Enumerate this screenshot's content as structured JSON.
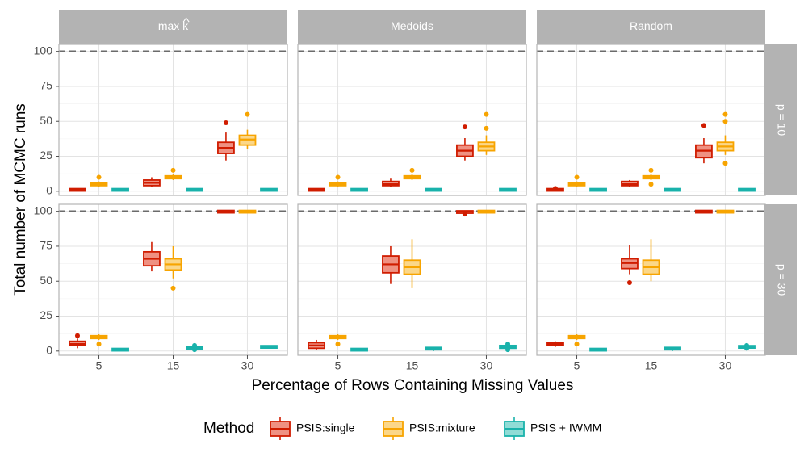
{
  "chart_data": {
    "type": "boxplot",
    "x_label": "Percentage of Rows Containing Missing Values",
    "y_label": "Total number of MCMC runs",
    "x_categories": [
      "5",
      "15",
      "30"
    ],
    "y_ticks": [
      0,
      25,
      50,
      75,
      100
    ],
    "ylim": [
      -3,
      105
    ],
    "reference_line": 100,
    "column_facets": [
      "max k",
      "Medoids",
      "Random"
    ],
    "column_facet_hat_on_last_char": [
      true,
      false,
      false
    ],
    "row_facets": [
      "p = 10",
      "p = 30"
    ],
    "legend": {
      "title": "Method",
      "position": "bottom",
      "entries": [
        "PSIS:single",
        "PSIS:mixture",
        "PSIS + IWMM"
      ]
    },
    "series_colors": {
      "PSIS:single": "#d01c00",
      "PSIS:mixture": "#f7a400",
      "PSIS + IWMM": "#19b2ab"
    },
    "series_fills": {
      "PSIS:single": "#ef9182",
      "PSIS:mixture": "#fbd789",
      "PSIS + IWMM": "#90dcd6"
    },
    "panels": [
      {
        "row": "p = 10",
        "col": "max k",
        "boxes": [
          {
            "series": "PSIS:single",
            "x": "5",
            "q1": 0.5,
            "median": 1,
            "q3": 1.5,
            "lo": 0,
            "hi": 2,
            "outliers": []
          },
          {
            "series": "PSIS:mixture",
            "x": "5",
            "q1": 4,
            "median": 5,
            "q3": 6,
            "lo": 3,
            "hi": 7,
            "outliers": [
              10
            ]
          },
          {
            "series": "PSIS + IWMM",
            "x": "5",
            "q1": 0.5,
            "median": 1,
            "q3": 1.5,
            "lo": 0,
            "hi": 2,
            "outliers": []
          },
          {
            "series": "PSIS:single",
            "x": "15",
            "q1": 4,
            "median": 6,
            "q3": 8,
            "lo": 3,
            "hi": 10,
            "outliers": []
          },
          {
            "series": "PSIS:mixture",
            "x": "15",
            "q1": 9,
            "median": 10,
            "q3": 11,
            "lo": 8,
            "hi": 12,
            "outliers": [
              15
            ]
          },
          {
            "series": "PSIS + IWMM",
            "x": "15",
            "q1": 0.5,
            "median": 1,
            "q3": 1.5,
            "lo": 0,
            "hi": 2,
            "outliers": []
          },
          {
            "series": "PSIS:single",
            "x": "30",
            "q1": 27,
            "median": 31,
            "q3": 35,
            "lo": 22,
            "hi": 42,
            "outliers": [
              49
            ]
          },
          {
            "series": "PSIS:mixture",
            "x": "30",
            "q1": 33,
            "median": 37,
            "q3": 40,
            "lo": 30,
            "hi": 44,
            "outliers": [
              55
            ]
          },
          {
            "series": "PSIS + IWMM",
            "x": "30",
            "q1": 0.5,
            "median": 1,
            "q3": 1.5,
            "lo": 0,
            "hi": 2,
            "outliers": []
          }
        ]
      },
      {
        "row": "p = 10",
        "col": "Medoids",
        "boxes": [
          {
            "series": "PSIS:single",
            "x": "5",
            "q1": 0.5,
            "median": 1,
            "q3": 1.5,
            "lo": 0,
            "hi": 2,
            "outliers": []
          },
          {
            "series": "PSIS:mixture",
            "x": "5",
            "q1": 4,
            "median": 5,
            "q3": 6,
            "lo": 3,
            "hi": 7,
            "outliers": [
              10
            ]
          },
          {
            "series": "PSIS + IWMM",
            "x": "5",
            "q1": 0.5,
            "median": 1,
            "q3": 1.5,
            "lo": 0,
            "hi": 2,
            "outliers": []
          },
          {
            "series": "PSIS:single",
            "x": "15",
            "q1": 4,
            "median": 5,
            "q3": 7,
            "lo": 3,
            "hi": 9,
            "outliers": []
          },
          {
            "series": "PSIS:mixture",
            "x": "15",
            "q1": 9,
            "median": 10,
            "q3": 11,
            "lo": 8,
            "hi": 12,
            "outliers": [
              15
            ]
          },
          {
            "series": "PSIS + IWMM",
            "x": "15",
            "q1": 0.5,
            "median": 1,
            "q3": 1.5,
            "lo": 0,
            "hi": 2,
            "outliers": []
          },
          {
            "series": "PSIS:single",
            "x": "30",
            "q1": 25,
            "median": 29,
            "q3": 33,
            "lo": 22,
            "hi": 38,
            "outliers": [
              46
            ]
          },
          {
            "series": "PSIS:mixture",
            "x": "30",
            "q1": 29,
            "median": 32,
            "q3": 35,
            "lo": 26,
            "hi": 40,
            "outliers": [
              45,
              55
            ]
          },
          {
            "series": "PSIS + IWMM",
            "x": "30",
            "q1": 0.5,
            "median": 1,
            "q3": 1.5,
            "lo": 0,
            "hi": 2,
            "outliers": []
          }
        ]
      },
      {
        "row": "p = 10",
        "col": "Random",
        "boxes": [
          {
            "series": "PSIS:single",
            "x": "5",
            "q1": 0.5,
            "median": 1,
            "q3": 1.5,
            "lo": 0,
            "hi": 2,
            "outliers": [
              2
            ]
          },
          {
            "series": "PSIS:mixture",
            "x": "5",
            "q1": 4,
            "median": 5,
            "q3": 6,
            "lo": 3,
            "hi": 7,
            "outliers": [
              10
            ]
          },
          {
            "series": "PSIS + IWMM",
            "x": "5",
            "q1": 0.5,
            "median": 1,
            "q3": 1.5,
            "lo": 0,
            "hi": 2,
            "outliers": []
          },
          {
            "series": "PSIS:single",
            "x": "15",
            "q1": 4,
            "median": 5,
            "q3": 7,
            "lo": 3,
            "hi": 8,
            "outliers": []
          },
          {
            "series": "PSIS:mixture",
            "x": "15",
            "q1": 9,
            "median": 10,
            "q3": 11,
            "lo": 8,
            "hi": 12,
            "outliers": [
              5,
              15
            ]
          },
          {
            "series": "PSIS + IWMM",
            "x": "15",
            "q1": 0.5,
            "median": 1,
            "q3": 1.5,
            "lo": 0,
            "hi": 2,
            "outliers": []
          },
          {
            "series": "PSIS:single",
            "x": "30",
            "q1": 24,
            "median": 29,
            "q3": 33,
            "lo": 20,
            "hi": 38,
            "outliers": [
              47
            ]
          },
          {
            "series": "PSIS:mixture",
            "x": "30",
            "q1": 29,
            "median": 32,
            "q3": 35,
            "lo": 26,
            "hi": 40,
            "outliers": [
              20,
              50,
              55
            ]
          },
          {
            "series": "PSIS + IWMM",
            "x": "30",
            "q1": 0.5,
            "median": 1,
            "q3": 1.5,
            "lo": 0,
            "hi": 2,
            "outliers": []
          }
        ]
      },
      {
        "row": "p = 30",
        "col": "max k",
        "boxes": [
          {
            "series": "PSIS:single",
            "x": "5",
            "q1": 4,
            "median": 5,
            "q3": 7,
            "lo": 2,
            "hi": 9,
            "outliers": [
              11
            ]
          },
          {
            "series": "PSIS:mixture",
            "x": "5",
            "q1": 9,
            "median": 10,
            "q3": 11,
            "lo": 8,
            "hi": 12,
            "outliers": [
              5
            ]
          },
          {
            "series": "PSIS + IWMM",
            "x": "5",
            "q1": 0.5,
            "median": 1,
            "q3": 1.5,
            "lo": 0,
            "hi": 2,
            "outliers": []
          },
          {
            "series": "PSIS:single",
            "x": "15",
            "q1": 61,
            "median": 66,
            "q3": 71,
            "lo": 57,
            "hi": 78,
            "outliers": []
          },
          {
            "series": "PSIS:mixture",
            "x": "15",
            "q1": 58,
            "median": 62,
            "q3": 66,
            "lo": 52,
            "hi": 75,
            "outliers": [
              45
            ]
          },
          {
            "series": "PSIS + IWMM",
            "x": "15",
            "q1": 1,
            "median": 2,
            "q3": 3,
            "lo": 0,
            "hi": 4,
            "outliers": [
              1,
              4
            ]
          },
          {
            "series": "PSIS:single",
            "x": "30",
            "q1": 99.5,
            "median": 100,
            "q3": 100,
            "lo": 99,
            "hi": 100,
            "outliers": []
          },
          {
            "series": "PSIS:mixture",
            "x": "30",
            "q1": 99.5,
            "median": 100,
            "q3": 100,
            "lo": 99,
            "hi": 100,
            "outliers": []
          },
          {
            "series": "PSIS + IWMM",
            "x": "30",
            "q1": 2.5,
            "median": 3,
            "q3": 3.5,
            "lo": 2,
            "hi": 4,
            "outliers": []
          }
        ]
      },
      {
        "row": "p = 30",
        "col": "Medoids",
        "boxes": [
          {
            "series": "PSIS:single",
            "x": "5",
            "q1": 2,
            "median": 4,
            "q3": 6,
            "lo": 1,
            "hi": 8,
            "outliers": []
          },
          {
            "series": "PSIS:mixture",
            "x": "5",
            "q1": 9,
            "median": 10,
            "q3": 11,
            "lo": 8,
            "hi": 12,
            "outliers": [
              5
            ]
          },
          {
            "series": "PSIS + IWMM",
            "x": "5",
            "q1": 0.5,
            "median": 1,
            "q3": 1.5,
            "lo": 0,
            "hi": 2,
            "outliers": []
          },
          {
            "series": "PSIS:single",
            "x": "15",
            "q1": 56,
            "median": 62,
            "q3": 68,
            "lo": 48,
            "hi": 75,
            "outliers": []
          },
          {
            "series": "PSIS:mixture",
            "x": "15",
            "q1": 55,
            "median": 60,
            "q3": 65,
            "lo": 45,
            "hi": 80,
            "outliers": []
          },
          {
            "series": "PSIS + IWMM",
            "x": "15",
            "q1": 1,
            "median": 2,
            "q3": 2.5,
            "lo": 0,
            "hi": 3,
            "outliers": []
          },
          {
            "series": "PSIS:single",
            "x": "30",
            "q1": 99,
            "median": 100,
            "q3": 100,
            "lo": 98,
            "hi": 100,
            "outliers": [
              98
            ]
          },
          {
            "series": "PSIS:mixture",
            "x": "30",
            "q1": 99.5,
            "median": 100,
            "q3": 100,
            "lo": 99,
            "hi": 100,
            "outliers": []
          },
          {
            "series": "PSIS + IWMM",
            "x": "30",
            "q1": 2,
            "median": 3,
            "q3": 4,
            "lo": 1,
            "hi": 5,
            "outliers": [
              1,
              5
            ]
          }
        ]
      },
      {
        "row": "p = 30",
        "col": "Random",
        "boxes": [
          {
            "series": "PSIS:single",
            "x": "5",
            "q1": 4,
            "median": 5,
            "q3": 6,
            "lo": 3,
            "hi": 7,
            "outliers": []
          },
          {
            "series": "PSIS:mixture",
            "x": "5",
            "q1": 9,
            "median": 10,
            "q3": 11,
            "lo": 8,
            "hi": 12,
            "outliers": [
              5
            ]
          },
          {
            "series": "PSIS + IWMM",
            "x": "5",
            "q1": 0.5,
            "median": 1,
            "q3": 1.5,
            "lo": 0,
            "hi": 2,
            "outliers": []
          },
          {
            "series": "PSIS:single",
            "x": "15",
            "q1": 59,
            "median": 63,
            "q3": 66,
            "lo": 55,
            "hi": 76,
            "outliers": [
              49
            ]
          },
          {
            "series": "PSIS:mixture",
            "x": "15",
            "q1": 55,
            "median": 60,
            "q3": 65,
            "lo": 50,
            "hi": 80,
            "outliers": []
          },
          {
            "series": "PSIS + IWMM",
            "x": "15",
            "q1": 1,
            "median": 2,
            "q3": 2.5,
            "lo": 0,
            "hi": 3,
            "outliers": []
          },
          {
            "series": "PSIS:single",
            "x": "30",
            "q1": 99.5,
            "median": 100,
            "q3": 100,
            "lo": 99,
            "hi": 100,
            "outliers": []
          },
          {
            "series": "PSIS:mixture",
            "x": "30",
            "q1": 99.5,
            "median": 100,
            "q3": 100,
            "lo": 99,
            "hi": 100,
            "outliers": []
          },
          {
            "series": "PSIS + IWMM",
            "x": "30",
            "q1": 2.5,
            "median": 3,
            "q3": 3.5,
            "lo": 2,
            "hi": 4,
            "outliers": [
              2,
              4
            ]
          }
        ]
      }
    ]
  }
}
